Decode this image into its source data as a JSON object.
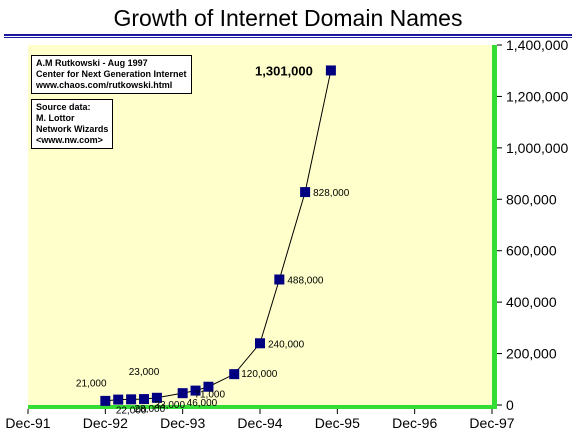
{
  "chart_data": {
    "type": "line",
    "title": "Growth of Internet Domain Names",
    "x_tick_labels": [
      "Dec-91",
      "Dec-92",
      "Dec-93",
      "Dec-94",
      "Dec-95",
      "Dec-96",
      "Dec-97"
    ],
    "y_tick_labels": [
      "0",
      "200,000",
      "400,000",
      "600,000",
      "800,000",
      "1,000,000",
      "1,200,000",
      "1,400,000"
    ],
    "ylim": [
      0,
      1400000
    ],
    "xlim": [
      0,
      72
    ],
    "grid": false,
    "points": [
      {
        "x": 12,
        "y": 16000,
        "label": ""
      },
      {
        "x": 14,
        "y": 21000,
        "label": "21,000"
      },
      {
        "x": 16,
        "y": 22000,
        "label": "22,000"
      },
      {
        "x": 18,
        "y": 23000,
        "label": "23,000"
      },
      {
        "x": 20,
        "y": 28000,
        "label": "28,000"
      },
      {
        "x": 24,
        "y": 46000,
        "label": "46,000"
      },
      {
        "x": 26,
        "y": 56000,
        "label": ""
      },
      {
        "x": 28,
        "y": 71000,
        "label": "71,000"
      },
      {
        "x": 32,
        "y": 120000,
        "label": "120,000"
      },
      {
        "x": 36,
        "y": 240000,
        "label": "240,000"
      },
      {
        "x": 39,
        "y": 488000,
        "label": "488,000"
      },
      {
        "x": 43,
        "y": 828000,
        "label": "828,000"
      },
      {
        "x": 47,
        "y": 1301000,
        "label": "1,301,000"
      }
    ],
    "stray_label": "33,000"
  },
  "colors": {
    "plot_bg": "#ffffcc",
    "axis_green": "#33dd33",
    "line": "#000000",
    "marker": "#000080"
  },
  "notes": {
    "credit": [
      "A.M Rutkowski - Aug 1997",
      "Center for Next Generation Internet",
      "www.chaos.com/rutkowski.html"
    ],
    "source": [
      "Source data:",
      "M. Lottor",
      "Network Wizards",
      "<www.nw.com>"
    ]
  }
}
